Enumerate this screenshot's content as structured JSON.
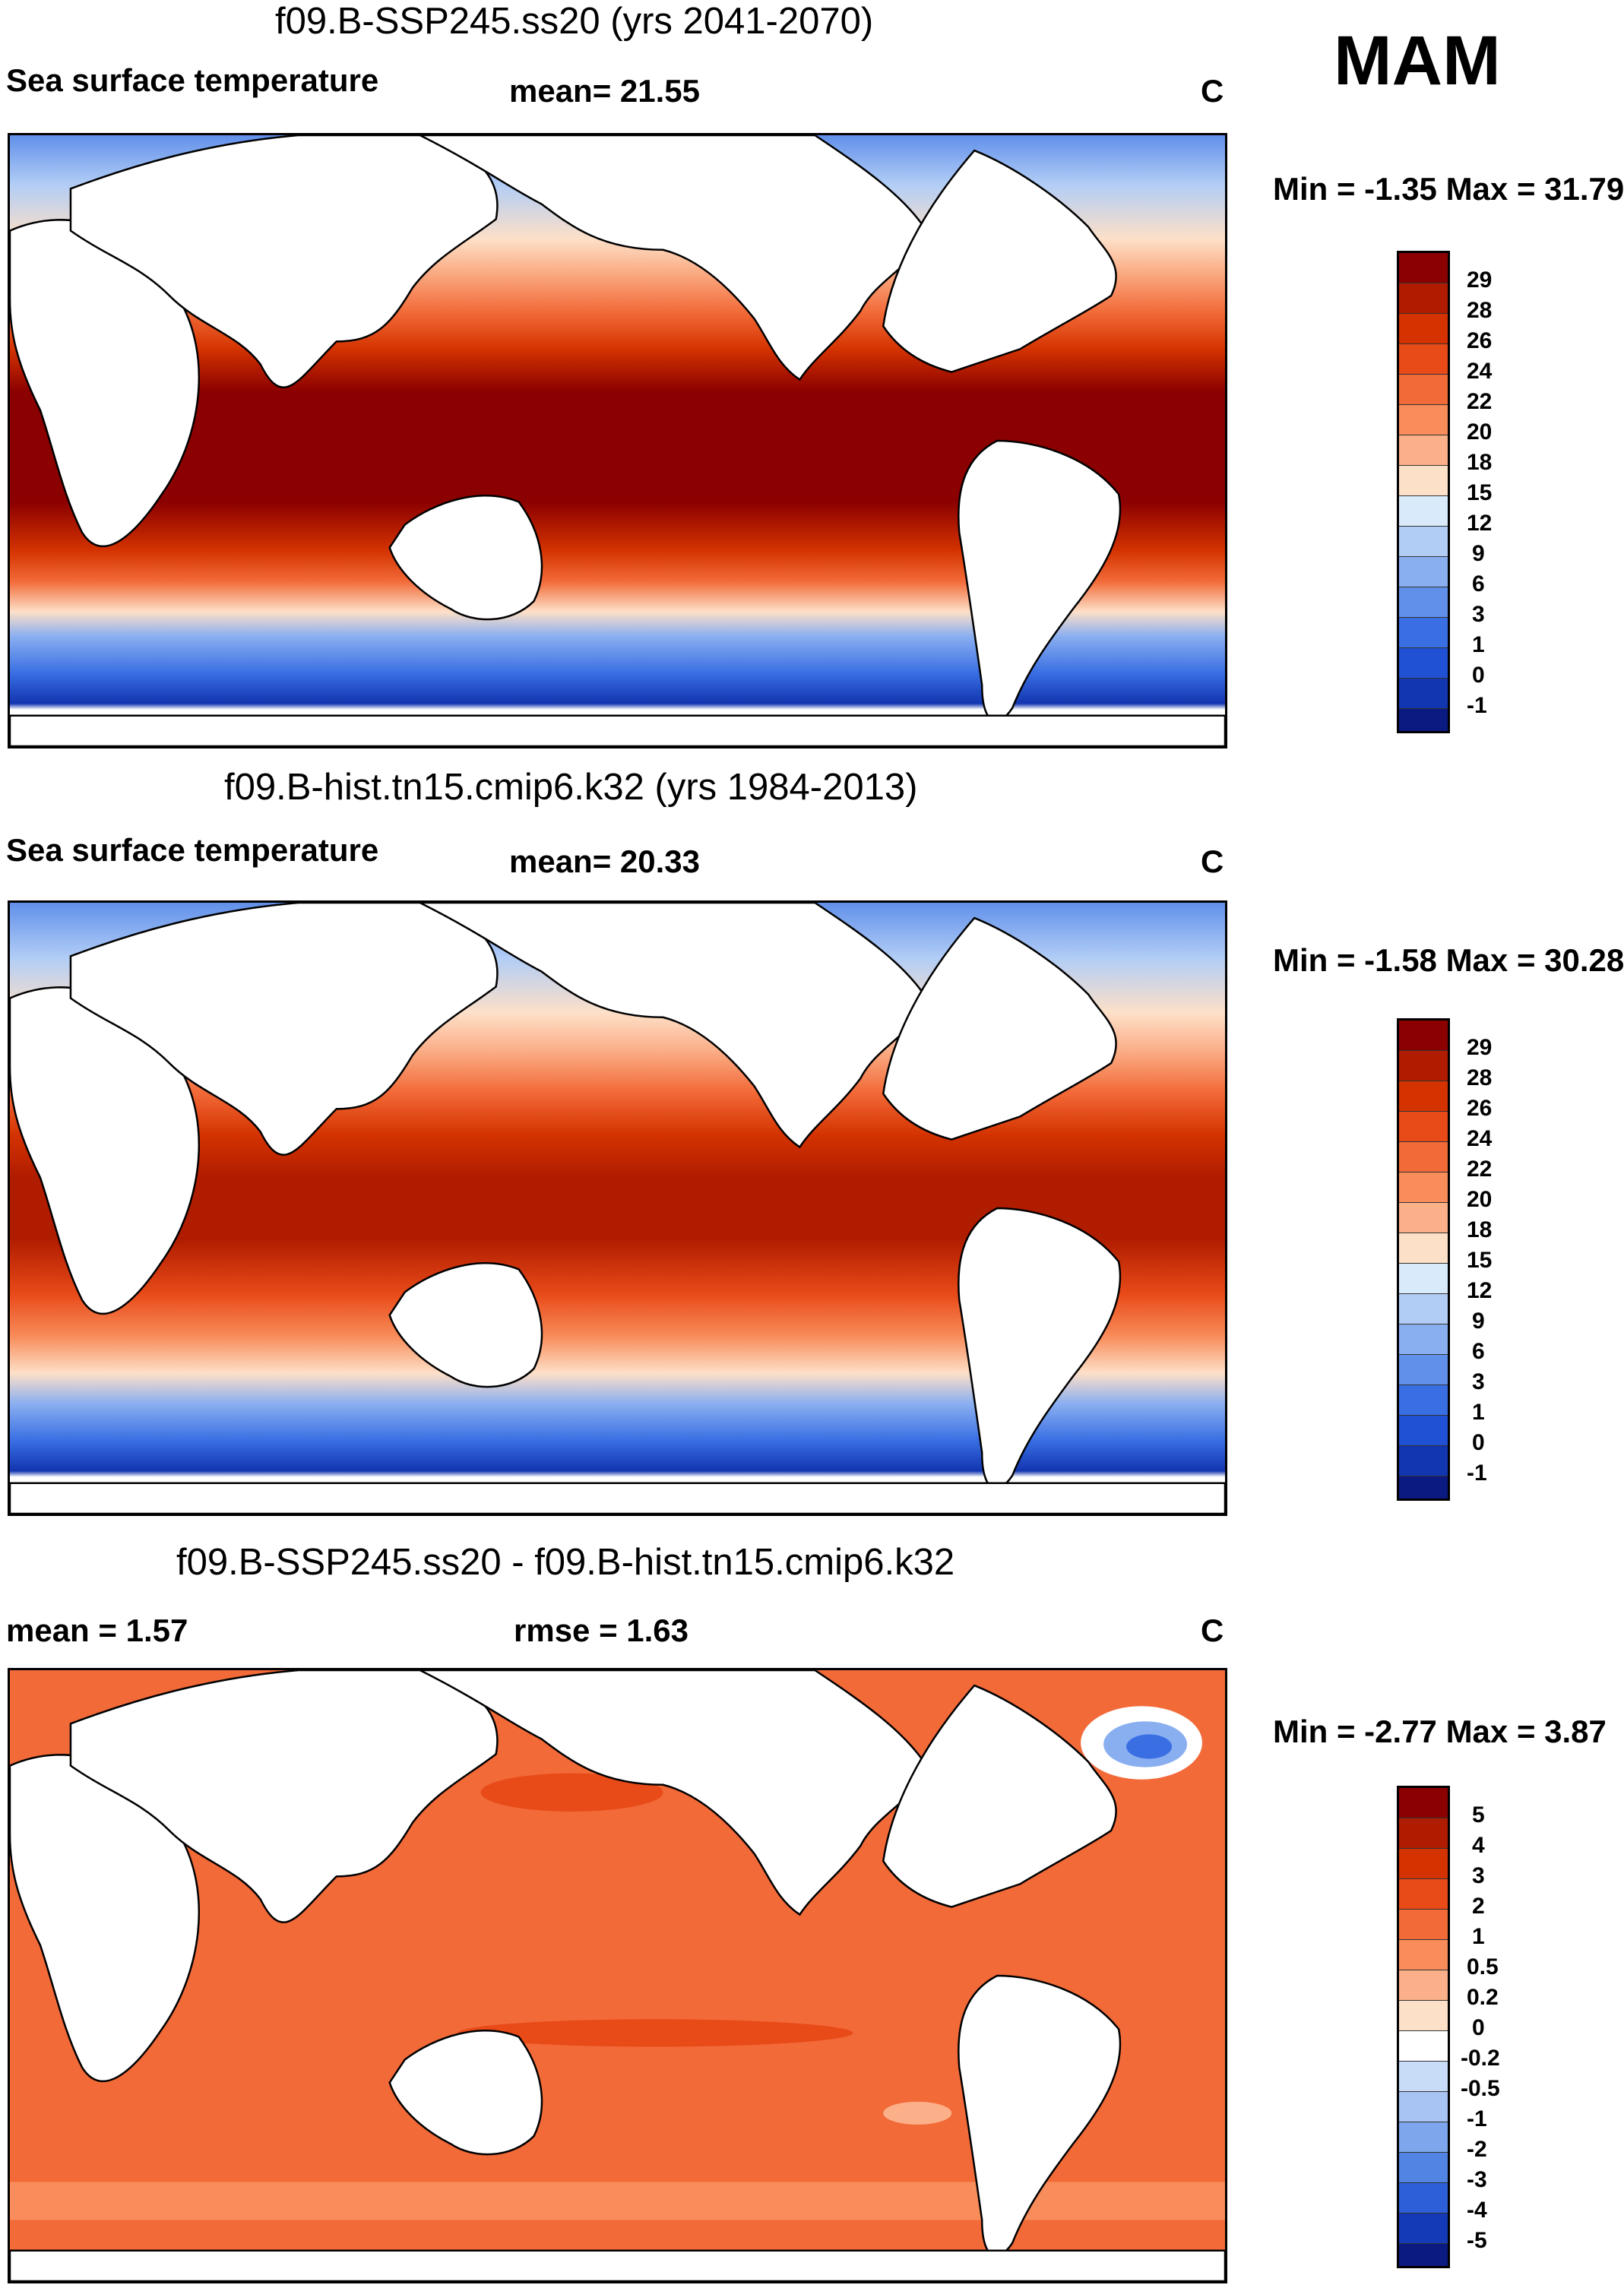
{
  "season": "MAM",
  "panels": [
    {
      "title": "f09.B-SSP245.ss20 (yrs 2041-2070)",
      "left_label": "Sea surface temperature",
      "center_label": "mean=  21.55",
      "unit": "C",
      "range_label": "Min =  -1.35 Max =  31.79"
    },
    {
      "title": "f09.B-hist.tn15.cmip6.k32 (yrs 1984-2013)",
      "left_label": "Sea surface temperature",
      "center_label": "mean=  20.33",
      "unit": "C",
      "range_label": "Min =  -1.58 Max =  30.28"
    },
    {
      "title": "f09.B-SSP245.ss20 - f09.B-hist.tn15.cmip6.k32",
      "left_label": "mean =    1.57",
      "center_label": "rmse =    1.63",
      "unit": "C",
      "range_label": "Min =  -2.77 Max =   3.87"
    }
  ],
  "colorbars": {
    "sst": {
      "labels": [
        "29",
        "28",
        "26",
        "24",
        "22",
        "20",
        "18",
        "15",
        "12",
        "9",
        "6",
        "3",
        "1",
        "0",
        "-1"
      ],
      "colors": [
        "#8b0000",
        "#b01c00",
        "#d43300",
        "#e84a18",
        "#f26a38",
        "#f88c5a",
        "#fbb089",
        "#fde0c8",
        "#d9ebfb",
        "#b1cdf6",
        "#8aaff0",
        "#6190ea",
        "#3a6fe3",
        "#2050d3",
        "#1235b0",
        "#0a1a80"
      ]
    },
    "diff": {
      "labels": [
        "5",
        "4",
        "3",
        "2",
        "1",
        "0.5",
        "0.2",
        "0",
        "-0.2",
        "-0.5",
        "-1",
        "-2",
        "-3",
        "-4",
        "-5"
      ],
      "colors": [
        "#8b0000",
        "#b01c00",
        "#d43300",
        "#e84a18",
        "#f26a38",
        "#f88c5a",
        "#fbb089",
        "#fde0c8",
        "#ffffff",
        "#c8dcf8",
        "#a8c4f2",
        "#7ea6ec",
        "#5284e4",
        "#2c5fd8",
        "#143ab8",
        "#0a1a80"
      ]
    }
  }
}
